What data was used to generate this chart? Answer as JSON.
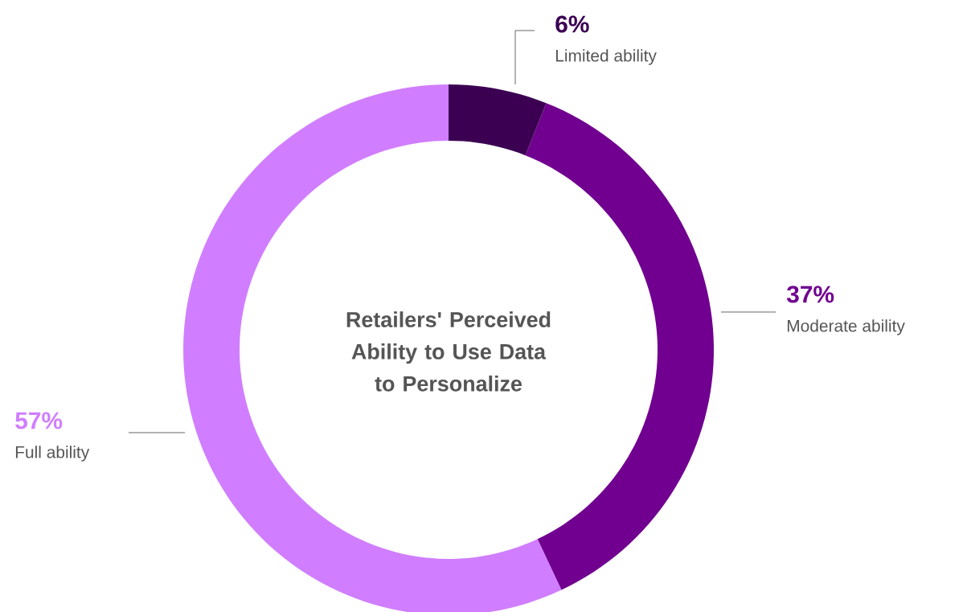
{
  "chart_data": {
    "type": "donut",
    "title": "Retailers' Perceived Ability to Use Data to Personalize",
    "categories": [
      "Limited ability",
      "Moderate ability",
      "Full ability"
    ],
    "values": [
      6,
      37,
      57
    ],
    "value_labels": [
      "6%",
      "37%",
      "57%"
    ],
    "colors": [
      "#3b0052",
      "#710090",
      "#d07eff"
    ]
  }
}
